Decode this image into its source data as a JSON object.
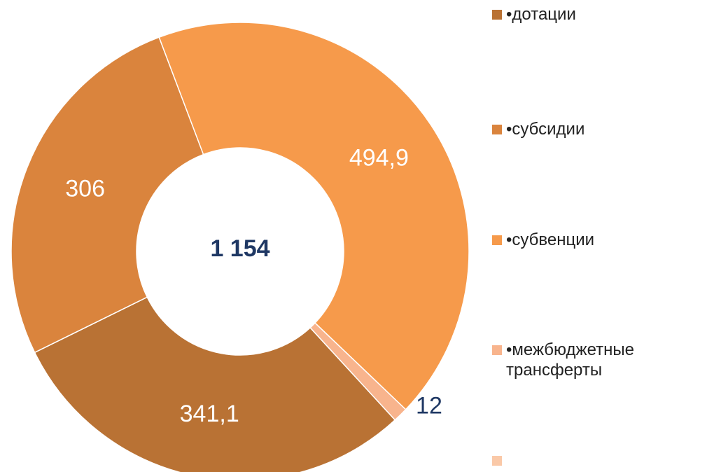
{
  "chart_data": {
    "type": "pie",
    "center_label": "1 154",
    "categories": [
      "•дотации",
      "•субсидии",
      "•субвенции",
      "•межбюджетные трансферты"
    ],
    "values": [
      341.1,
      306,
      494.9,
      12
    ],
    "value_labels": [
      "341,1",
      "306",
      "494,9",
      "12"
    ],
    "colors": [
      "#b97234",
      "#da843d",
      "#f69a4b",
      "#f8b48d"
    ]
  }
}
